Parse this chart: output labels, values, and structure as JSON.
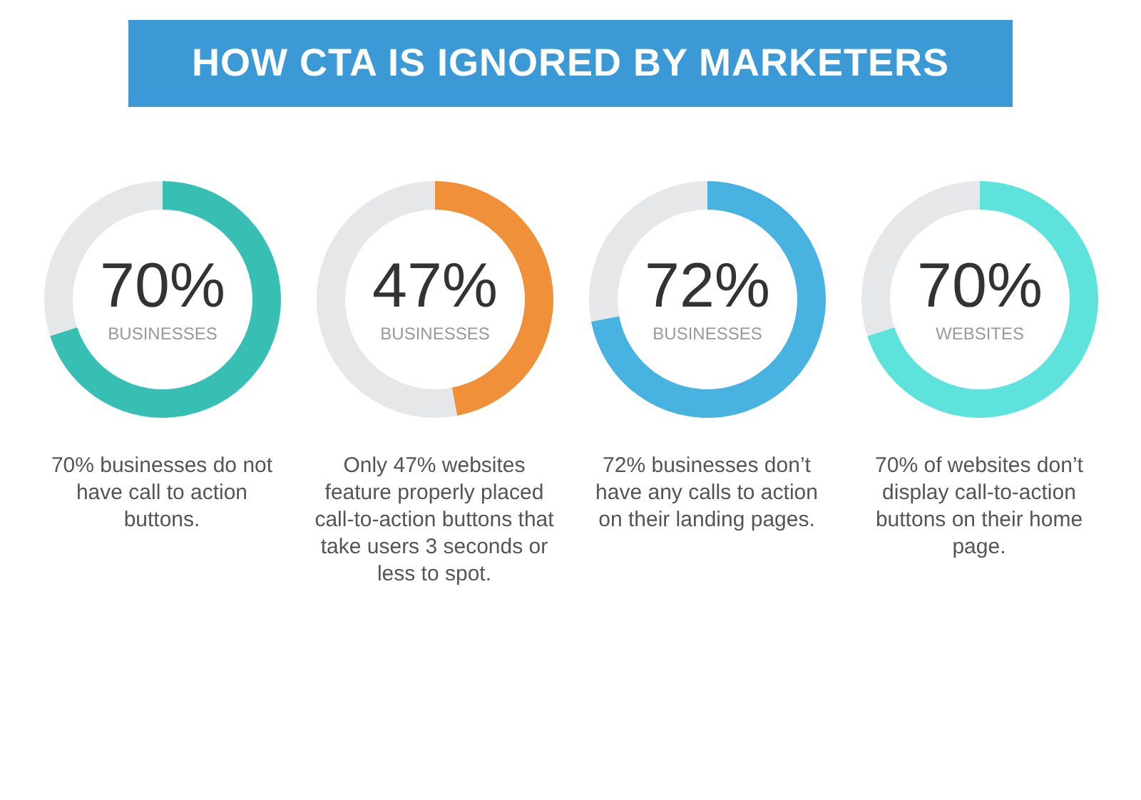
{
  "chart_data": [
    {
      "type": "donut",
      "title": "HOW CTA IS IGNORED BY MARKETERS",
      "categories": [
        null,
        null
      ],
      "values": [
        70,
        30
      ],
      "colors": [
        "#37bfb3",
        "#e6e7e9"
      ],
      "value_labels": [
        "70%",
        null
      ],
      "annotations": [
        "BUSINESSES",
        "70% businesses do not have call to action buttons."
      ]
    },
    {
      "type": "donut",
      "categories": [
        null,
        null
      ],
      "values": [
        47,
        53
      ],
      "colors": [
        "#f0913a",
        "#e6e7e9"
      ],
      "value_labels": [
        "47%",
        null
      ],
      "annotations": [
        "BUSINESSES",
        "Only 47% websites feature properly placed call-to-action buttons that take users 3 seconds or less to spot."
      ]
    },
    {
      "type": "donut",
      "categories": [
        null,
        null
      ],
      "values": [
        72,
        28
      ],
      "colors": [
        "#48b2e0",
        "#e6e7e9"
      ],
      "value_labels": [
        "72%",
        null
      ],
      "annotations": [
        "BUSINESSES",
        "72% businesses don’t have any calls to action on their landing pages."
      ]
    },
    {
      "type": "donut",
      "categories": [
        null,
        null
      ],
      "values": [
        70,
        30
      ],
      "colors": [
        "#5de3dc",
        "#e6e7e9"
      ],
      "value_labels": [
        "70%",
        null
      ],
      "annotations": [
        "WEBSITES",
        "70% of websites don’t display call-to-action buttons on their home page."
      ]
    }
  ]
}
